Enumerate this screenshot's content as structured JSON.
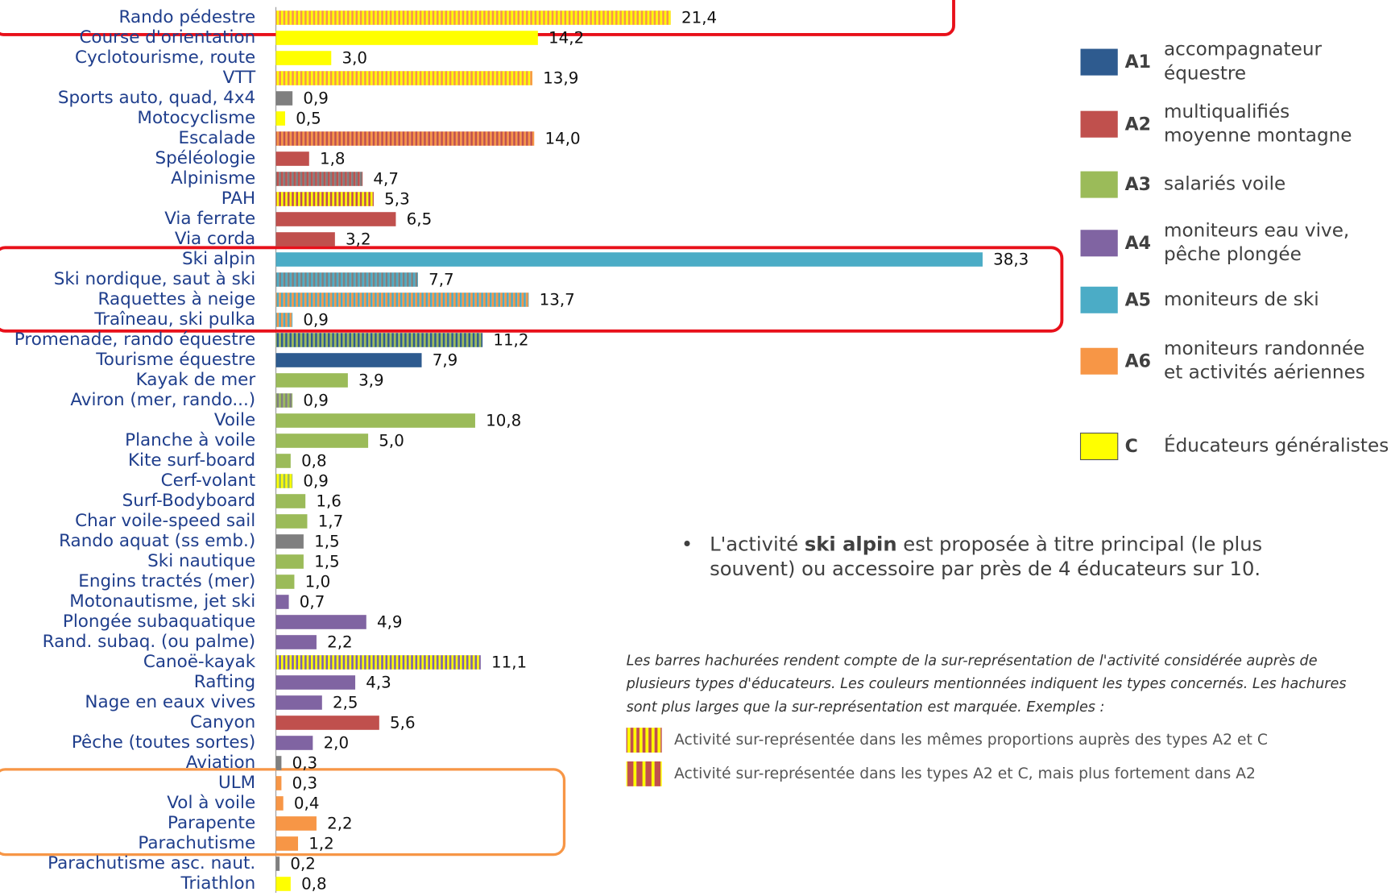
{
  "chart_data": {
    "type": "bar",
    "orientation": "horizontal",
    "categories": [
      "Rando pédestre",
      "Course d'orientation",
      "Cyclotourisme, route",
      "VTT",
      "Sports auto, quad, 4x4",
      "Motocyclisme",
      "Escalade",
      "Spéléologie",
      "Alpinisme",
      "PAH",
      "Via ferrate",
      "Via corda",
      "Ski alpin",
      "Ski nordique, saut à ski",
      "Raquettes à neige",
      "Traîneau, ski pulka",
      "Promenade, rando équestre",
      "Tourisme équestre",
      "Kayak de mer",
      "Aviron (mer, rando...)",
      "Voile",
      "Planche à voile",
      "Kite surf-board",
      "Cerf-volant",
      "Surf-Bodyboard",
      "Char voile-speed sail",
      "Rando aquat (ss emb.)",
      "Ski nautique",
      "Engins tractés (mer)",
      "Motonautisme, jet ski",
      "Plongée subaquatique",
      "Rand. subaq. (ou palme)",
      "Canoë-kayak",
      "Rafting",
      "Nage en eaux vives",
      "Canyon",
      "Pêche (toutes sortes)",
      "Aviation",
      "ULM",
      "Vol à voile",
      "Parapente",
      "Parachutisme",
      "Parachutisme asc. naut.",
      "Triathlon"
    ],
    "values": [
      21.4,
      14.2,
      3.0,
      13.9,
      0.9,
      0.5,
      14.0,
      1.8,
      4.7,
      5.3,
      6.5,
      3.2,
      38.3,
      7.7,
      13.7,
      0.9,
      11.2,
      7.9,
      3.9,
      0.9,
      10.8,
      5.0,
      0.8,
      0.9,
      1.6,
      1.7,
      1.5,
      1.5,
      1.0,
      0.7,
      4.9,
      2.2,
      11.1,
      4.3,
      2.5,
      5.6,
      2.0,
      0.3,
      0.3,
      0.4,
      2.2,
      1.2,
      0.2,
      0.8
    ],
    "value_labels": [
      "21,4",
      "14,2",
      "3,0",
      "13,9",
      "0,9",
      "0,5",
      "14,0",
      "1,8",
      "4,7",
      "5,3",
      "6,5",
      "3,2",
      "38,3",
      "7,7",
      "13,7",
      "0,9",
      "11,2",
      "7,9",
      "3,9",
      "0,9",
      "10,8",
      "5,0",
      "0,8",
      "0,9",
      "1,6",
      "1,7",
      "1,5",
      "1,5",
      "1,0",
      "0,7",
      "4,9",
      "2,2",
      "11,1",
      "4,3",
      "2,5",
      "5,6",
      "2,0",
      "0,3",
      "0,3",
      "0,4",
      "2,2",
      "1,2",
      "0,2",
      "0,8"
    ],
    "colors": [
      [
        "#ffff00",
        "#f79646"
      ],
      [
        "#ffff00"
      ],
      [
        "#ffff00"
      ],
      [
        "#ffff00",
        "#f79646"
      ],
      [
        "#7f7f7f"
      ],
      [
        "#ffff00"
      ],
      [
        "#f79646",
        "#c0504d"
      ],
      [
        "#c0504d"
      ],
      [
        "#c0504d",
        "#7f7f7f"
      ],
      [
        "#ffff00",
        "#c0504d"
      ],
      [
        "#c0504d"
      ],
      [
        "#c0504d"
      ],
      [
        "#4bacc6"
      ],
      [
        "#4bacc6",
        "#7f7f7f"
      ],
      [
        "#4bacc6",
        "#f79646"
      ],
      [
        "#f79646",
        "#4bacc6"
      ],
      [
        "#2e5b8f",
        "#9bbb59"
      ],
      [
        "#2e5b8f"
      ],
      [
        "#9bbb59"
      ],
      [
        "#7f7f7f",
        "#9bbb59"
      ],
      [
        "#9bbb59"
      ],
      [
        "#9bbb59"
      ],
      [
        "#9bbb59"
      ],
      [
        "#ffff00",
        "#9bbb59"
      ],
      [
        "#9bbb59"
      ],
      [
        "#9bbb59"
      ],
      [
        "#7f7f7f"
      ],
      [
        "#9bbb59"
      ],
      [
        "#9bbb59"
      ],
      [
        "#8064a2"
      ],
      [
        "#8064a2"
      ],
      [
        "#8064a2"
      ],
      [
        "#ffff00",
        "#8064a2"
      ],
      [
        "#8064a2"
      ],
      [
        "#8064a2"
      ],
      [
        "#c0504d"
      ],
      [
        "#8064a2"
      ],
      [
        "#7f7f7f"
      ],
      [
        "#f79646"
      ],
      [
        "#f79646"
      ],
      [
        "#f79646"
      ],
      [
        "#f79646"
      ],
      [
        "#7f7f7f"
      ],
      [
        "#ffff00"
      ]
    ],
    "xlim": [
      0,
      40
    ],
    "legend": [
      {
        "code": "A1",
        "label": [
          "accompagnateur",
          "équestre"
        ],
        "color": "#2e5b8f"
      },
      {
        "code": "A2",
        "label": [
          "multiqualifiés",
          "moyenne montagne"
        ],
        "color": "#c0504d"
      },
      {
        "code": "A3",
        "label": [
          "salariés voile"
        ],
        "color": "#9bbb59"
      },
      {
        "code": "A4",
        "label": [
          "moniteurs eau vive,",
          "pêche  plongée"
        ],
        "color": "#8064a2"
      },
      {
        "code": "A5",
        "label": [
          "moniteurs de ski"
        ],
        "color": "#4bacc6"
      },
      {
        "code": "A6",
        "label": [
          "moniteurs randonnée",
          "et activités aériennes"
        ],
        "color": "#f79646"
      },
      {
        "code": "C",
        "label": [
          "Éducateurs généralistes"
        ],
        "color": "#ffff00"
      }
    ],
    "bullet": [
      "L'activité ",
      "ski alpin",
      "  est proposée à titre principal (le plus",
      "souvent) ou accessoire par près de 4 éducateurs sur 10."
    ],
    "note": [
      "Les barres hachurées rendent compte de la sur-représentation de l'activité considérée auprès de",
      "plusieurs types d'éducateurs. Les couleurs mentionnées indiquent les types concernés. Les hachures",
      "sont plus larges que la sur-représentation est marquée. Exemples :"
    ],
    "examples": [
      {
        "text": "Activité sur-représentée dans les mêmes proportions  auprès des types A2 et C",
        "colors": [
          "#ffff00",
          "#c0504d"
        ],
        "weights": [
          1,
          1
        ]
      },
      {
        "text": "Activité sur-représentée dans les types A2 et C, mais plus fortement dans A2",
        "colors": [
          "#ffff00",
          "#c0504d"
        ],
        "weights": [
          1,
          2
        ]
      }
    ]
  }
}
